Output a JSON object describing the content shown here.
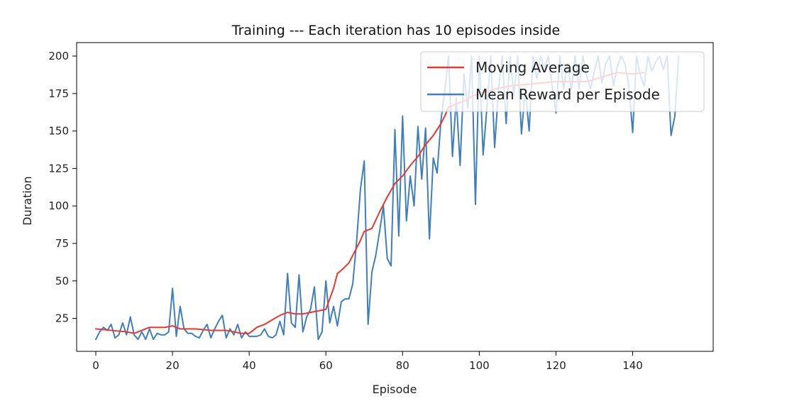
{
  "chart_data": {
    "type": "line",
    "title": "Training --- Each iteration has 10 episodes inside",
    "xlabel": "Episode",
    "ylabel": "Duration",
    "xlim": [
      -5,
      161
    ],
    "ylim": [
      3,
      209
    ],
    "x_ticks": [
      0,
      20,
      40,
      60,
      80,
      100,
      120,
      140
    ],
    "y_ticks": [
      25,
      50,
      75,
      100,
      125,
      150,
      175,
      200
    ],
    "grid": false,
    "legend_placement": "top-right",
    "series": [
      {
        "name": "Moving Average",
        "color": "#e8392e",
        "points": [
          [
            0,
            18
          ],
          [
            4,
            17
          ],
          [
            8,
            16
          ],
          [
            10,
            15
          ],
          [
            12,
            17
          ],
          [
            14,
            19
          ],
          [
            16,
            19
          ],
          [
            18,
            19
          ],
          [
            20,
            20
          ],
          [
            22,
            18
          ],
          [
            26,
            18
          ],
          [
            30,
            17
          ],
          [
            34,
            17
          ],
          [
            38,
            15
          ],
          [
            40,
            15
          ],
          [
            42,
            19
          ],
          [
            44,
            21
          ],
          [
            46,
            24
          ],
          [
            48,
            27
          ],
          [
            50,
            29
          ],
          [
            52,
            28
          ],
          [
            54,
            28
          ],
          [
            56,
            29
          ],
          [
            58,
            30
          ],
          [
            60,
            31
          ],
          [
            62,
            45
          ],
          [
            63,
            55
          ],
          [
            64,
            57
          ],
          [
            66,
            62
          ],
          [
            68,
            72
          ],
          [
            69,
            77
          ],
          [
            70,
            83
          ],
          [
            72,
            85
          ],
          [
            74,
            96
          ],
          [
            76,
            106
          ],
          [
            78,
            115
          ],
          [
            80,
            120
          ],
          [
            82,
            127
          ],
          [
            84,
            133
          ],
          [
            86,
            141
          ],
          [
            88,
            147
          ],
          [
            90,
            155
          ],
          [
            91,
            160
          ],
          [
            92,
            166
          ],
          [
            94,
            168
          ],
          [
            96,
            170
          ],
          [
            98,
            173
          ],
          [
            100,
            175
          ],
          [
            104,
            178
          ],
          [
            108,
            180
          ],
          [
            112,
            181
          ],
          [
            116,
            182
          ],
          [
            120,
            183
          ],
          [
            124,
            183
          ],
          [
            128,
            183
          ],
          [
            132,
            186
          ],
          [
            136,
            189
          ],
          [
            140,
            188
          ],
          [
            143,
            189
          ]
        ]
      },
      {
        "name": "Mean Reward per Episode",
        "color": "#3f7fbf",
        "points": [
          [
            0,
            11
          ],
          [
            1,
            16
          ],
          [
            2,
            19
          ],
          [
            3,
            17
          ],
          [
            4,
            21
          ],
          [
            5,
            12
          ],
          [
            6,
            14
          ],
          [
            7,
            22
          ],
          [
            8,
            14
          ],
          [
            9,
            26
          ],
          [
            10,
            14
          ],
          [
            11,
            11
          ],
          [
            12,
            16
          ],
          [
            13,
            11
          ],
          [
            14,
            18
          ],
          [
            15,
            11
          ],
          [
            16,
            15
          ],
          [
            17,
            14
          ],
          [
            18,
            14
          ],
          [
            19,
            16
          ],
          [
            20,
            45
          ],
          [
            21,
            13
          ],
          [
            22,
            33
          ],
          [
            23,
            18
          ],
          [
            24,
            15
          ],
          [
            25,
            15
          ],
          [
            26,
            13
          ],
          [
            27,
            12
          ],
          [
            28,
            17
          ],
          [
            29,
            21
          ],
          [
            30,
            12
          ],
          [
            31,
            18
          ],
          [
            32,
            23
          ],
          [
            33,
            27
          ],
          [
            34,
            12
          ],
          [
            35,
            18
          ],
          [
            36,
            14
          ],
          [
            37,
            21
          ],
          [
            38,
            12
          ],
          [
            39,
            16
          ],
          [
            40,
            13
          ],
          [
            41,
            13
          ],
          [
            42,
            13
          ],
          [
            43,
            14
          ],
          [
            44,
            18
          ],
          [
            45,
            13
          ],
          [
            46,
            12
          ],
          [
            47,
            14
          ],
          [
            48,
            23
          ],
          [
            49,
            14
          ],
          [
            50,
            55
          ],
          [
            51,
            22
          ],
          [
            52,
            19
          ],
          [
            53,
            54
          ],
          [
            54,
            16
          ],
          [
            55,
            26
          ],
          [
            56,
            31
          ],
          [
            57,
            46
          ],
          [
            58,
            11
          ],
          [
            59,
            16
          ],
          [
            60,
            50
          ],
          [
            61,
            22
          ],
          [
            62,
            33
          ],
          [
            63,
            20
          ],
          [
            64,
            36
          ],
          [
            65,
            38
          ],
          [
            66,
            38
          ],
          [
            67,
            48
          ],
          [
            68,
            76
          ],
          [
            69,
            111
          ],
          [
            70,
            130
          ],
          [
            71,
            21
          ],
          [
            72,
            56
          ],
          [
            73,
            67
          ],
          [
            74,
            83
          ],
          [
            75,
            100
          ],
          [
            76,
            65
          ],
          [
            77,
            60
          ],
          [
            78,
            151
          ],
          [
            79,
            80
          ],
          [
            80,
            160
          ],
          [
            81,
            90
          ],
          [
            82,
            120
          ],
          [
            83,
            100
          ],
          [
            84,
            153
          ],
          [
            85,
            118
          ],
          [
            86,
            152
          ],
          [
            87,
            78
          ],
          [
            88,
            132
          ],
          [
            89,
            122
          ],
          [
            90,
            157
          ],
          [
            91,
            177
          ],
          [
            92,
            200
          ],
          [
            93,
            133
          ],
          [
            94,
            172
          ],
          [
            95,
            127
          ],
          [
            96,
            188
          ],
          [
            97,
            165
          ],
          [
            98,
            200
          ],
          [
            99,
            101
          ],
          [
            100,
            200
          ],
          [
            101,
            134
          ],
          [
            102,
            166
          ],
          [
            103,
            200
          ],
          [
            104,
            139
          ],
          [
            105,
            177
          ],
          [
            106,
            200
          ],
          [
            107,
            155
          ],
          [
            108,
            200
          ],
          [
            109,
            174
          ],
          [
            110,
            200
          ],
          [
            111,
            148
          ],
          [
            112,
            178
          ],
          [
            113,
            150
          ],
          [
            114,
            200
          ],
          [
            115,
            185
          ],
          [
            116,
            200
          ],
          [
            117,
            192
          ],
          [
            118,
            200
          ],
          [
            119,
            180
          ],
          [
            120,
            162
          ],
          [
            121,
            200
          ],
          [
            122,
            178
          ],
          [
            123,
            195
          ],
          [
            124,
            178
          ],
          [
            125,
            200
          ],
          [
            126,
            178
          ],
          [
            127,
            200
          ],
          [
            128,
            187
          ],
          [
            129,
            178
          ],
          [
            130,
            190
          ],
          [
            131,
            200
          ],
          [
            132,
            182
          ],
          [
            133,
            195
          ],
          [
            134,
            200
          ],
          [
            135,
            180
          ],
          [
            136,
            193
          ],
          [
            137,
            200
          ],
          [
            138,
            195
          ],
          [
            139,
            180
          ],
          [
            140,
            149
          ],
          [
            141,
            200
          ],
          [
            142,
            187
          ],
          [
            143,
            180
          ],
          [
            144,
            200
          ],
          [
            145,
            190
          ],
          [
            146,
            196
          ],
          [
            147,
            200
          ],
          [
            148,
            191
          ],
          [
            149,
            200
          ],
          [
            150,
            147
          ],
          [
            151,
            160
          ],
          [
            152,
            200
          ]
        ]
      }
    ]
  }
}
